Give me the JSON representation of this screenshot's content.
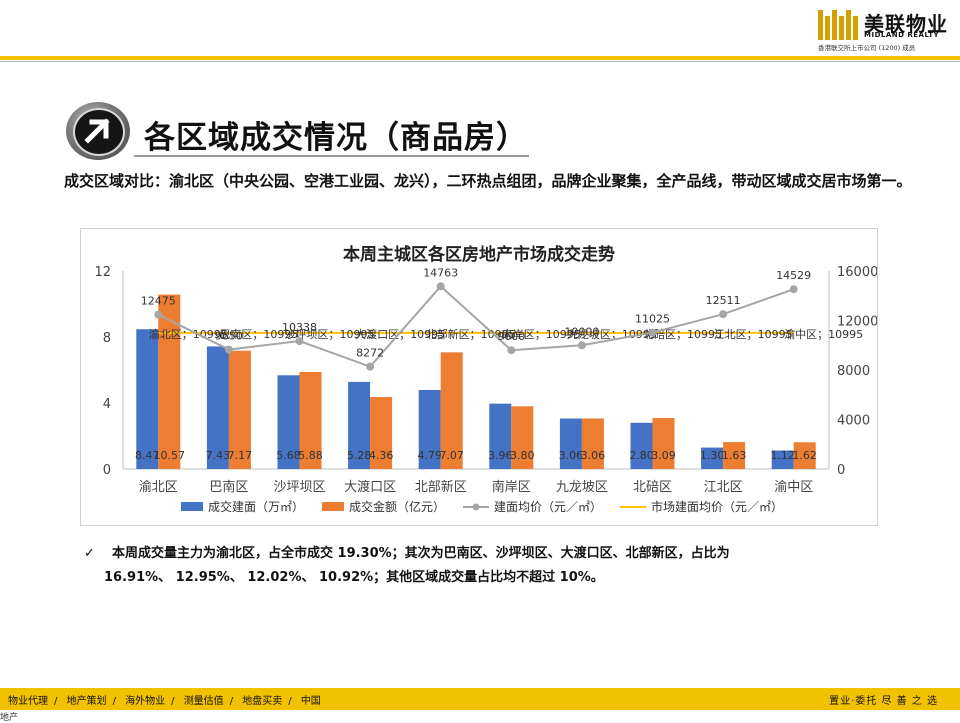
{
  "header": {
    "logo_cn": "美联物业",
    "logo_en": "MIDLAND REALTY",
    "logo_sub": "香港联交所上市公司 (1200) 成员"
  },
  "title": "各区域成交情况（商品房）",
  "description": "成交区域对比：渝北区（中央公园、空港工业园、龙兴），二环热点组团，品牌企业聚集，全产品线，带动区域成交居市场第一。",
  "note": {
    "check": "✓",
    "line1": "本周成交量主力为渝北区，占全市成交 19.30%；其次为巴南区、沙坪坝区、大渡口区、北部新区，占比为",
    "line2": "16.91%、 12.95%、 12.02%、 10.92%；其他区域成交量占比均不超过 10%。"
  },
  "footer": {
    "items": [
      "物业代理",
      "地产策划",
      "海外物业",
      "测量估值",
      "地盘买卖",
      "中国"
    ],
    "right": "置业·委托 尽 善 之 选",
    "under": "地产"
  },
  "chart_data": {
    "type": "bar",
    "title": "本周主城区各区房地产市场成交走势",
    "categories": [
      "渝北区",
      "巴南区",
      "沙坪坝区",
      "大渡口区",
      "北部新区",
      "南岸区",
      "九龙坡区",
      "北碚区",
      "江北区",
      "渝中区"
    ],
    "series": [
      {
        "name": "成交建面（万㎡）",
        "kind": "bar",
        "axis": "left",
        "color": "#4472c4",
        "values": [
          8.47,
          7.43,
          5.68,
          5.28,
          4.79,
          3.96,
          3.06,
          2.8,
          1.3,
          1.12
        ],
        "labels": [
          "8.47",
          "7.43",
          "5.68",
          "5.28",
          "4.79",
          "3.96",
          "3.06",
          "2.80",
          "1.30",
          "1.12"
        ]
      },
      {
        "name": "成交金额（亿元）",
        "kind": "bar",
        "axis": "left",
        "color": "#ed7d31",
        "values": [
          10.57,
          7.17,
          5.88,
          4.36,
          7.07,
          3.8,
          3.06,
          3.09,
          1.63,
          1.62
        ],
        "labels": [
          "10.57",
          "7.17",
          "5.88",
          "4.36",
          "7.07",
          "3.80",
          "3.06",
          "3.09",
          "1.63",
          "1.62"
        ]
      },
      {
        "name": "建面均价（元／㎡）",
        "kind": "line",
        "axis": "right",
        "color": "#a5a5a5",
        "values": [
          12475,
          9650,
          10338,
          8272,
          14763,
          9600,
          10000,
          11025,
          12511,
          14529
        ],
        "labels": [
          "12475",
          "9650",
          "10338",
          "8272",
          "14763",
          "9600",
          "10000",
          "11025",
          "12511",
          "14529"
        ]
      },
      {
        "name": "市场建面均价（元／㎡）",
        "kind": "line",
        "axis": "right",
        "color": "#ffc000",
        "values": [
          10995,
          10995,
          10995,
          10995,
          10995,
          10995,
          10995,
          10995,
          10995,
          10995
        ]
      }
    ],
    "avg_labels": [
      "渝北区；10995",
      "巴南区；10995",
      "沙坪坝区；10995",
      "大渡口区；10995",
      "北部新区；10995",
      "南岸区；10995",
      "九龙坡区；10995",
      "北碚区；10995",
      "江北区；10995",
      "渝中区；10995"
    ],
    "y_left": {
      "min": 0,
      "max": 12,
      "ticks": [
        "0",
        "4",
        "8",
        "12"
      ]
    },
    "y_right": {
      "min": 0,
      "max": 16000,
      "ticks": [
        "0",
        "4000",
        "8000",
        "12000",
        "16000"
      ]
    },
    "legend_position": "bottom",
    "grid": false
  }
}
